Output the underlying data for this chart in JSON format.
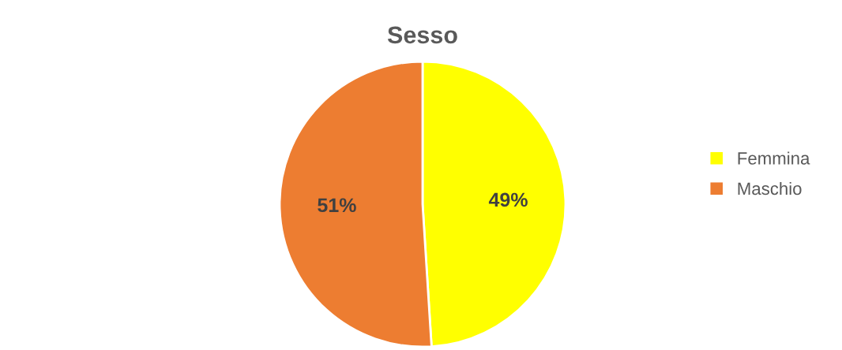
{
  "chart_data": {
    "type": "pie",
    "title": "Sesso",
    "categories": [
      "Femmina",
      "Maschio"
    ],
    "values": [
      49,
      51
    ],
    "colors": [
      "#ffff00",
      "#ed7d31"
    ],
    "value_labels": [
      "49%",
      "51%"
    ],
    "legend": "right"
  }
}
